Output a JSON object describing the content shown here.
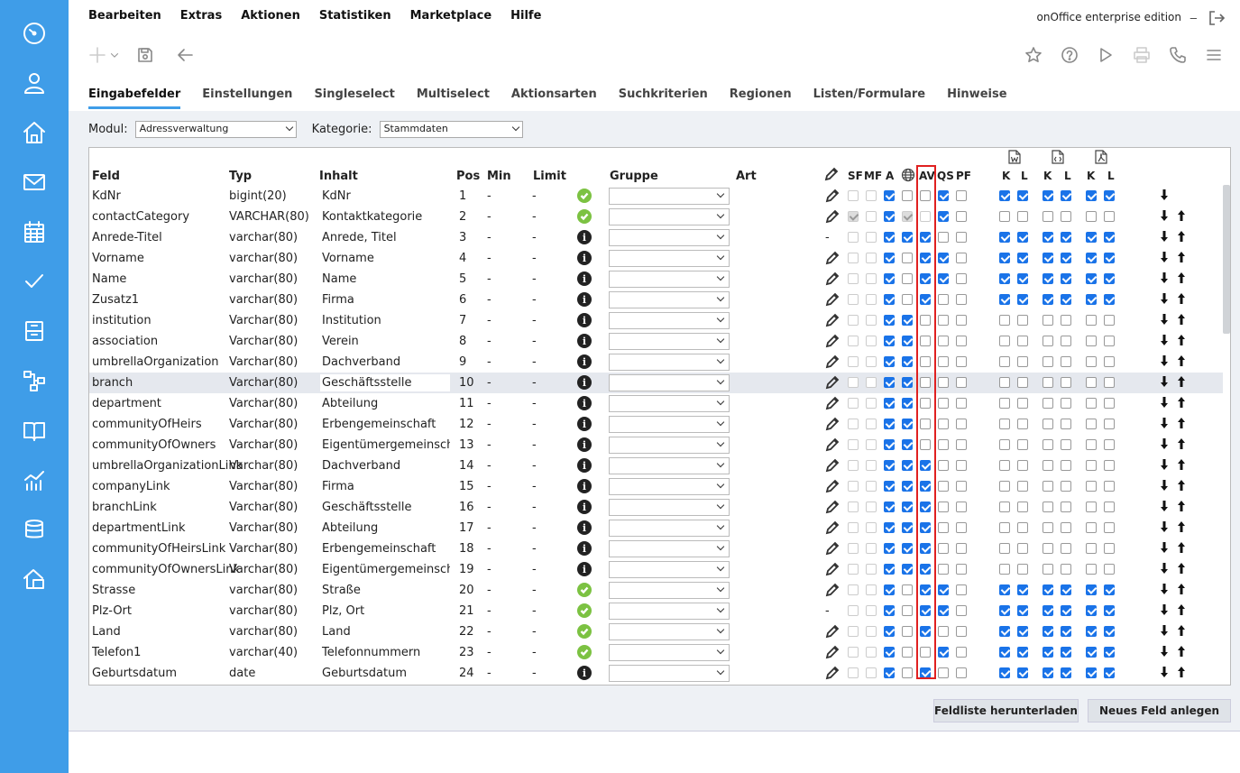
{
  "menu": [
    "Bearbeiten",
    "Extras",
    "Aktionen",
    "Statistiken",
    "Marketplace",
    "Hilfe"
  ],
  "edition": "onOffice enterprise edition",
  "edition_dash": "–",
  "tabs": [
    "Eingabefelder",
    "Einstellungen",
    "Singleselect",
    "Multiselect",
    "Aktionsarten",
    "Suchkriterien",
    "Regionen",
    "Listen/Formulare",
    "Hinweise"
  ],
  "active_tab": "Eingabefelder",
  "filters": {
    "modul_label": "Modul:",
    "modul_value": "Adressverwaltung",
    "kategorie_label": "Kategorie:",
    "kategorie_value": "Stammdaten"
  },
  "headers": {
    "feld": "Feld",
    "typ": "Typ",
    "inhalt": "Inhalt",
    "pos": "Pos",
    "min": "Min",
    "limit": "Limit",
    "gruppe": "Gruppe",
    "art": "Art",
    "sf": "SF",
    "mf": "MF",
    "a": "A",
    "av": "AV",
    "qs": "QS",
    "pf": "PF",
    "k1": "K",
    "l1": "L",
    "k2": "K",
    "l2": "L",
    "k3": "K",
    "l3": "L"
  },
  "rows": [
    {
      "feld": "KdNr",
      "typ": "bigint(20)",
      "inhalt": "KdNr",
      "pos": "1",
      "min": "-",
      "limit": "-",
      "status": "ok",
      "edit": "pencil",
      "cb": [
        "lt",
        "lt",
        "on",
        "off",
        "off",
        "on",
        "off",
        "on",
        "on",
        "on",
        "on",
        "on",
        "on"
      ],
      "arrows": "down"
    },
    {
      "feld": "contactCategory",
      "typ": "VARCHAR(80)",
      "inhalt": "Kontaktkategorie",
      "pos": "2",
      "min": "-",
      "limit": "-",
      "status": "ok",
      "edit": "pencil",
      "cb": [
        "dis",
        "lt",
        "on",
        "dis",
        "lt",
        "on",
        "off",
        "off",
        "off",
        "off",
        "off",
        "off",
        "off"
      ],
      "arrows": "both"
    },
    {
      "feld": "Anrede-Titel",
      "typ": "varchar(80)",
      "inhalt": "Anrede, Titel",
      "pos": "3",
      "min": "-",
      "limit": "-",
      "status": "info",
      "edit": "dash",
      "cb": [
        "lt",
        "lt",
        "on",
        "on",
        "on",
        "off",
        "off",
        "on",
        "on",
        "on",
        "on",
        "on",
        "on"
      ],
      "arrows": "both"
    },
    {
      "feld": "Vorname",
      "typ": "varchar(80)",
      "inhalt": "Vorname",
      "pos": "4",
      "min": "-",
      "limit": "-",
      "status": "info",
      "edit": "pencil",
      "cb": [
        "lt",
        "lt",
        "on",
        "off",
        "on",
        "on",
        "off",
        "on",
        "on",
        "on",
        "on",
        "on",
        "on"
      ],
      "arrows": "both"
    },
    {
      "feld": "Name",
      "typ": "varchar(80)",
      "inhalt": "Name",
      "pos": "5",
      "min": "-",
      "limit": "-",
      "status": "info",
      "edit": "pencil",
      "cb": [
        "lt",
        "lt",
        "on",
        "off",
        "on",
        "on",
        "off",
        "on",
        "on",
        "on",
        "on",
        "on",
        "on"
      ],
      "arrows": "both"
    },
    {
      "feld": "Zusatz1",
      "typ": "varchar(80)",
      "inhalt": "Firma",
      "pos": "6",
      "min": "-",
      "limit": "-",
      "status": "info",
      "edit": "pencil",
      "cb": [
        "lt",
        "lt",
        "on",
        "off",
        "on",
        "off",
        "off",
        "on",
        "on",
        "on",
        "on",
        "on",
        "on"
      ],
      "arrows": "both"
    },
    {
      "feld": "institution",
      "typ": "Varchar(80)",
      "inhalt": "Institution",
      "pos": "7",
      "min": "-",
      "limit": "-",
      "status": "info",
      "edit": "pencil",
      "cb": [
        "lt",
        "lt",
        "on",
        "on",
        "off",
        "off",
        "off",
        "off",
        "off",
        "off",
        "off",
        "off",
        "off"
      ],
      "arrows": "both"
    },
    {
      "feld": "association",
      "typ": "Varchar(80)",
      "inhalt": "Verein",
      "pos": "8",
      "min": "-",
      "limit": "-",
      "status": "info",
      "edit": "pencil",
      "cb": [
        "lt",
        "lt",
        "on",
        "on",
        "off",
        "off",
        "off",
        "off",
        "off",
        "off",
        "off",
        "off",
        "off"
      ],
      "arrows": "both"
    },
    {
      "feld": "umbrellaOrganization",
      "typ": "Varchar(80)",
      "inhalt": "Dachverband",
      "pos": "9",
      "min": "-",
      "limit": "-",
      "status": "info",
      "edit": "pencil",
      "cb": [
        "lt",
        "lt",
        "on",
        "on",
        "off",
        "off",
        "off",
        "off",
        "off",
        "off",
        "off",
        "off",
        "off"
      ],
      "arrows": "both"
    },
    {
      "feld": "branch",
      "typ": "Varchar(80)",
      "inhalt": "Geschäftsstelle",
      "pos": "10",
      "min": "-",
      "limit": "-",
      "status": "info",
      "edit": "pencil",
      "cb": [
        "lt",
        "lt",
        "on",
        "on",
        "off",
        "off",
        "off",
        "off",
        "off",
        "off",
        "off",
        "off",
        "off"
      ],
      "arrows": "both",
      "highlight": true
    },
    {
      "feld": "department",
      "typ": "Varchar(80)",
      "inhalt": "Abteilung",
      "pos": "11",
      "min": "-",
      "limit": "-",
      "status": "info",
      "edit": "pencil",
      "cb": [
        "lt",
        "lt",
        "on",
        "on",
        "off",
        "off",
        "off",
        "off",
        "off",
        "off",
        "off",
        "off",
        "off"
      ],
      "arrows": "both"
    },
    {
      "feld": "communityOfHeirs",
      "typ": "Varchar(80)",
      "inhalt": "Erbengemeinschaft",
      "pos": "12",
      "min": "-",
      "limit": "-",
      "status": "info",
      "edit": "pencil",
      "cb": [
        "lt",
        "lt",
        "on",
        "on",
        "off",
        "off",
        "off",
        "off",
        "off",
        "off",
        "off",
        "off",
        "off"
      ],
      "arrows": "both"
    },
    {
      "feld": "communityOfOwners",
      "typ": "Varchar(80)",
      "inhalt": "Eigentümergemeinschaf",
      "pos": "13",
      "min": "-",
      "limit": "-",
      "status": "info",
      "edit": "pencil",
      "cb": [
        "lt",
        "lt",
        "on",
        "on",
        "off",
        "off",
        "off",
        "off",
        "off",
        "off",
        "off",
        "off",
        "off"
      ],
      "arrows": "both"
    },
    {
      "feld": "umbrellaOrganizationLink",
      "typ": "Varchar(80)",
      "inhalt": "Dachverband",
      "pos": "14",
      "min": "-",
      "limit": "-",
      "status": "info",
      "edit": "pencil",
      "cb": [
        "lt",
        "lt",
        "on",
        "on",
        "on",
        "off",
        "off",
        "off",
        "off",
        "off",
        "off",
        "off",
        "off"
      ],
      "arrows": "both"
    },
    {
      "feld": "companyLink",
      "typ": "Varchar(80)",
      "inhalt": "Firma",
      "pos": "15",
      "min": "-",
      "limit": "-",
      "status": "info",
      "edit": "pencil",
      "cb": [
        "lt",
        "lt",
        "on",
        "on",
        "on",
        "off",
        "off",
        "off",
        "off",
        "off",
        "off",
        "off",
        "off"
      ],
      "arrows": "both"
    },
    {
      "feld": "branchLink",
      "typ": "Varchar(80)",
      "inhalt": "Geschäftsstelle",
      "pos": "16",
      "min": "-",
      "limit": "-",
      "status": "info",
      "edit": "pencil",
      "cb": [
        "lt",
        "lt",
        "on",
        "on",
        "on",
        "off",
        "off",
        "off",
        "off",
        "off",
        "off",
        "off",
        "off"
      ],
      "arrows": "both"
    },
    {
      "feld": "departmentLink",
      "typ": "Varchar(80)",
      "inhalt": "Abteilung",
      "pos": "17",
      "min": "-",
      "limit": "-",
      "status": "info",
      "edit": "pencil",
      "cb": [
        "lt",
        "lt",
        "on",
        "on",
        "on",
        "off",
        "off",
        "off",
        "off",
        "off",
        "off",
        "off",
        "off"
      ],
      "arrows": "both"
    },
    {
      "feld": "communityOfHeirsLink",
      "typ": "Varchar(80)",
      "inhalt": "Erbengemeinschaft",
      "pos": "18",
      "min": "-",
      "limit": "-",
      "status": "info",
      "edit": "pencil",
      "cb": [
        "lt",
        "lt",
        "on",
        "on",
        "on",
        "off",
        "off",
        "off",
        "off",
        "off",
        "off",
        "off",
        "off"
      ],
      "arrows": "both"
    },
    {
      "feld": "communityOfOwnersLink",
      "typ": "Varchar(80)",
      "inhalt": "Eigentümergemeinschaf",
      "pos": "19",
      "min": "-",
      "limit": "-",
      "status": "info",
      "edit": "pencil",
      "cb": [
        "lt",
        "lt",
        "on",
        "on",
        "on",
        "off",
        "off",
        "off",
        "off",
        "off",
        "off",
        "off",
        "off"
      ],
      "arrows": "both"
    },
    {
      "feld": "Strasse",
      "typ": "varchar(80)",
      "inhalt": "Straße",
      "pos": "20",
      "min": "-",
      "limit": "-",
      "status": "ok",
      "edit": "pencil",
      "cb": [
        "lt",
        "lt",
        "on",
        "off",
        "on",
        "on",
        "off",
        "on",
        "on",
        "on",
        "on",
        "on",
        "on"
      ],
      "arrows": "both"
    },
    {
      "feld": "Plz-Ort",
      "typ": "varchar(80)",
      "inhalt": "Plz, Ort",
      "pos": "21",
      "min": "-",
      "limit": "-",
      "status": "ok",
      "edit": "dash",
      "cb": [
        "lt",
        "lt",
        "on",
        "off",
        "on",
        "on",
        "off",
        "on",
        "on",
        "on",
        "on",
        "on",
        "on"
      ],
      "arrows": "both"
    },
    {
      "feld": "Land",
      "typ": "varchar(80)",
      "inhalt": "Land",
      "pos": "22",
      "min": "-",
      "limit": "-",
      "status": "ok",
      "edit": "pencil",
      "cb": [
        "lt",
        "lt",
        "on",
        "off",
        "on",
        "off",
        "off",
        "on",
        "on",
        "on",
        "on",
        "on",
        "on"
      ],
      "arrows": "both"
    },
    {
      "feld": "Telefon1",
      "typ": "varchar(40)",
      "inhalt": "Telefonnummern",
      "pos": "23",
      "min": "-",
      "limit": "-",
      "status": "ok",
      "edit": "pencil",
      "cb": [
        "lt",
        "lt",
        "on",
        "off",
        "off",
        "on",
        "off",
        "on",
        "on",
        "on",
        "on",
        "on",
        "on"
      ],
      "arrows": "both"
    },
    {
      "feld": "Geburtsdatum",
      "typ": "date",
      "inhalt": "Geburtsdatum",
      "pos": "24",
      "min": "-",
      "limit": "-",
      "status": "info",
      "edit": "pencil",
      "cb": [
        "lt",
        "lt",
        "on",
        "off",
        "on",
        "off",
        "off",
        "on",
        "on",
        "on",
        "on",
        "on",
        "on"
      ],
      "arrows": "both"
    }
  ],
  "buttons": {
    "download": "Feldliste herunterladen",
    "new_field": "Neues Feld anlegen"
  },
  "colors": {
    "sidebar": "#3f9de8",
    "checkbox_on": "#1a73e8",
    "status_ok": "#7cc242",
    "highlight_box": "#e02020"
  }
}
